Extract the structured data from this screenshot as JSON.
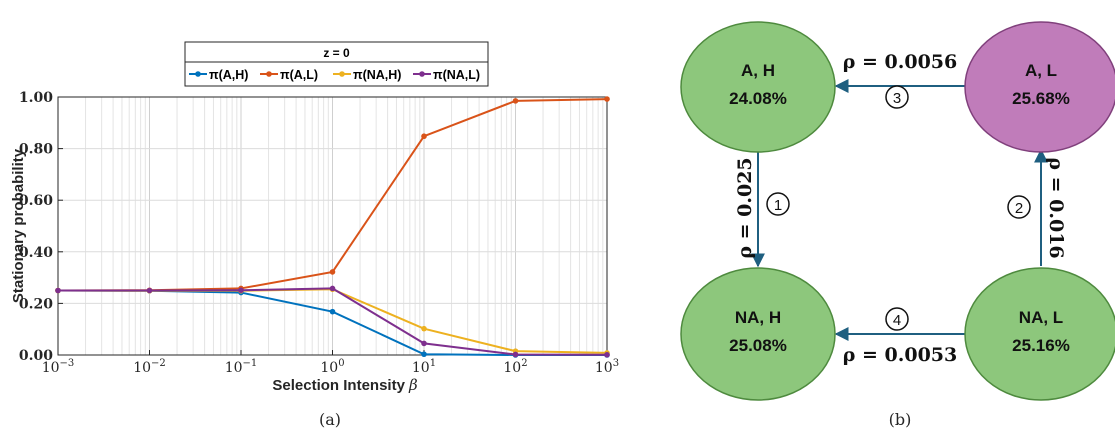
{
  "chart_data": {
    "type": "line",
    "title": "z = 0",
    "xlabel": "Selection Intensity",
    "xlabel_symbol": "β",
    "ylabel": "Stationary probability",
    "xscale": "log",
    "xlim": [
      0.001,
      1000
    ],
    "ylim": [
      0,
      1
    ],
    "grid": true,
    "legend_placement": "top (above plot, horizontal)",
    "x": [
      0.001,
      0.01,
      0.1,
      1,
      10,
      100,
      1000
    ],
    "xtick_labels": [
      {
        "base": "10",
        "exp": "−3"
      },
      {
        "base": "10",
        "exp": "−2"
      },
      {
        "base": "10",
        "exp": "−1"
      },
      {
        "base": "10",
        "exp": "0"
      },
      {
        "base": "10",
        "exp": "1"
      },
      {
        "base": "10",
        "exp": "2"
      },
      {
        "base": "10",
        "exp": "3"
      }
    ],
    "ytick_values": [
      0,
      0.2,
      0.4,
      0.6,
      0.8,
      1.0
    ],
    "ytick_labels": [
      "0.00",
      "0.20",
      "0.40",
      "0.60",
      "0.80",
      "1.00"
    ],
    "series": [
      {
        "name": "π(A,H)",
        "color": "#0072BD",
        "values": [
          0.25,
          0.249,
          0.242,
          0.168,
          0.003,
          0.0,
          0.0
        ]
      },
      {
        "name": "π(A,L)",
        "color": "#D95319",
        "values": [
          0.25,
          0.251,
          0.258,
          0.322,
          0.848,
          0.985,
          0.992
        ]
      },
      {
        "name": "π(NA,H)",
        "color": "#EDB120",
        "values": [
          0.25,
          0.249,
          0.249,
          0.255,
          0.102,
          0.015,
          0.008
        ]
      },
      {
        "name": "π(NA,L)",
        "color": "#7E2F8E",
        "values": [
          0.25,
          0.25,
          0.251,
          0.258,
          0.045,
          0.002,
          0.001
        ]
      }
    ],
    "caption": "(a)"
  },
  "diagram": {
    "caption": "(b)",
    "nodes": [
      {
        "id": "AH",
        "line1": "A, H",
        "line2": "24.08%",
        "fill": "#8dc77c",
        "stroke": "#4e8a3e"
      },
      {
        "id": "AL",
        "line1": "A, L",
        "line2": "25.68%",
        "fill": "#c07cba",
        "stroke": "#80407c"
      },
      {
        "id": "NAH",
        "line1": "NA, H",
        "line2": "25.08%",
        "fill": "#8dc77c",
        "stroke": "#4e8a3e"
      },
      {
        "id": "NAL",
        "line1": "NA, L",
        "line2": "25.16%",
        "fill": "#8dc77c",
        "stroke": "#4e8a3e"
      }
    ],
    "edges": [
      {
        "from": "AH",
        "to": "NAH",
        "label": "ρ = 0.025",
        "number": "1"
      },
      {
        "from": "NAL",
        "to": "AL",
        "label": "ρ = 0.016",
        "number": "2"
      },
      {
        "from": "AL",
        "to": "AH",
        "label": "ρ = 0.0056",
        "number": "3"
      },
      {
        "from": "NAL",
        "to": "NAH",
        "label": "ρ = 0.0053",
        "number": "4"
      }
    ],
    "arrow_color": "#1f5f80"
  }
}
